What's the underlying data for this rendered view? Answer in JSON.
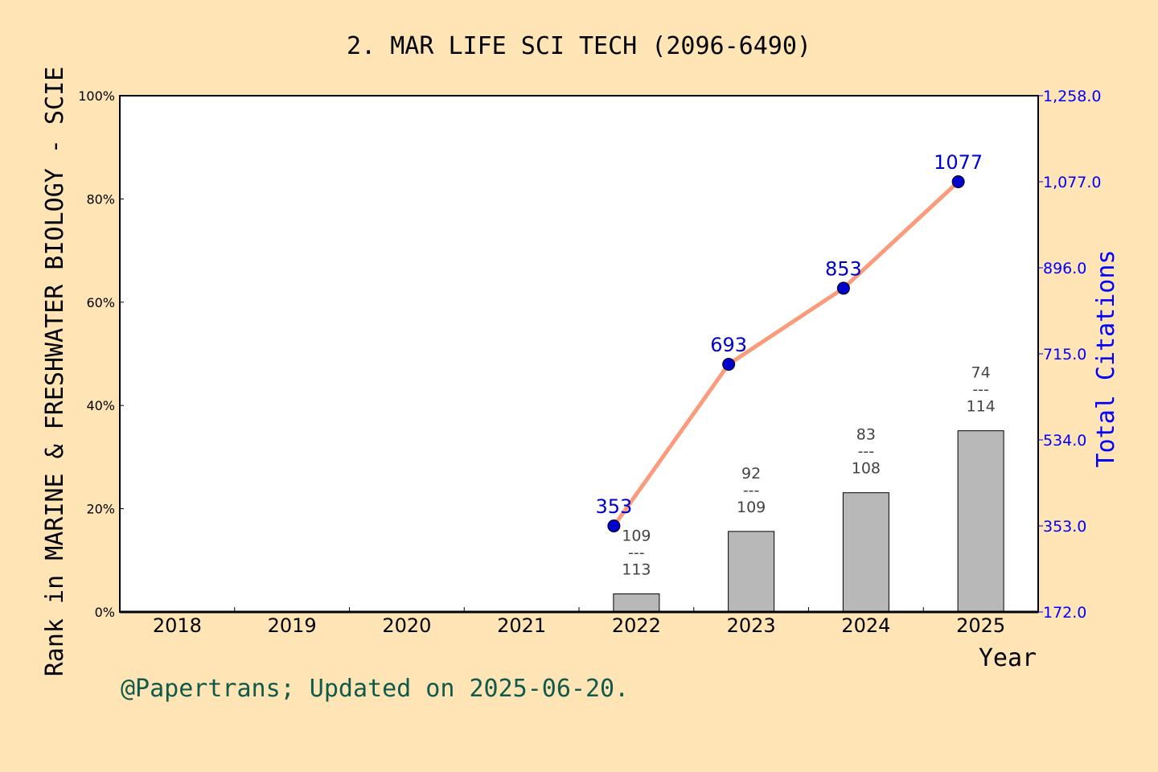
{
  "chart_data": {
    "type": "bar+line",
    "title": "2. MAR LIFE SCI TECH (2096-6490)",
    "xlabel": "Year",
    "ylabel_left": "Rank in MARINE & FRESHWATER BIOLOGY - SCIE",
    "ylabel_right": "Total Citations",
    "categories": [
      "2018",
      "2019",
      "2020",
      "2021",
      "2022",
      "2023",
      "2024",
      "2025"
    ],
    "left_axis": {
      "ylim": [
        0,
        100
      ],
      "ticks": [
        "0%",
        "20%",
        "40%",
        "60%",
        "80%",
        "100%"
      ]
    },
    "right_axis": {
      "ylim": [
        172,
        1258
      ],
      "ticks": [
        "172.0",
        "353.0",
        "534.0",
        "715.0",
        "896.0",
        "1,077.0",
        "1,258.0"
      ]
    },
    "bars": {
      "years": [
        "2022",
        "2023",
        "2024",
        "2025"
      ],
      "percent": [
        3.5,
        15.6,
        23.1,
        35.1
      ],
      "rank": [
        "109",
        "92",
        "83",
        "74"
      ],
      "total": [
        "113",
        "109",
        "108",
        "114"
      ],
      "separator": "---"
    },
    "line": {
      "years": [
        "2022",
        "2023",
        "2024",
        "2025"
      ],
      "values": [
        353,
        693,
        853,
        1077
      ],
      "labels": [
        "353",
        "693",
        "853",
        "1077"
      ]
    },
    "grid": false,
    "colors": {
      "background": "#FFE4B5",
      "bar": "#B8B8B8",
      "line": "#FA9B7B",
      "marker": "#0000CD",
      "right_axis": "#0000FF",
      "footer": "#0F5A4A"
    }
  },
  "footer": "@Papertrans; Updated on 2025-06-20."
}
